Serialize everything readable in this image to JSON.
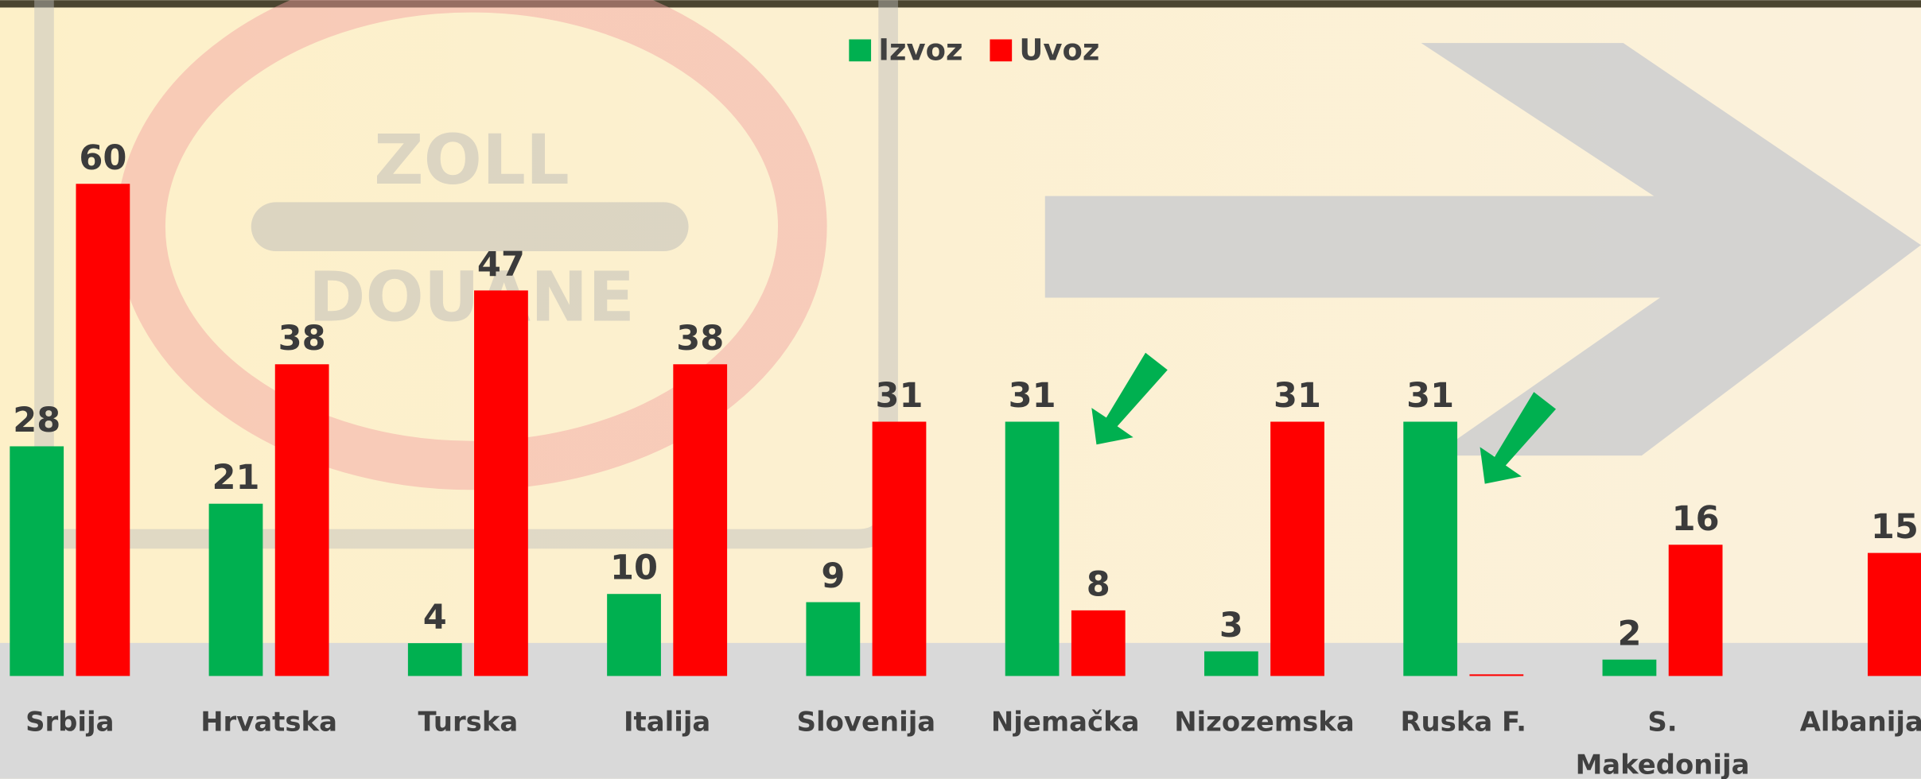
{
  "chart_data": {
    "type": "bar",
    "categories": [
      "Srbija",
      "Hrvatska",
      "Turska",
      "Italija",
      "Slovenija",
      "Njemačka",
      "Nizozemska",
      "Ruska F.",
      "S. Makedonija",
      "Albanija"
    ],
    "series": [
      {
        "name": "Izvoz",
        "color": "#00b050",
        "values": [
          28,
          21,
          4,
          10,
          9,
          31,
          3,
          31,
          2,
          null
        ]
      },
      {
        "name": "Uvoz",
        "color": "#ff0000",
        "values": [
          60,
          38,
          47,
          38,
          31,
          8,
          31,
          0.2,
          16,
          15
        ]
      }
    ],
    "ylim": [
      0,
      60
    ]
  }
}
